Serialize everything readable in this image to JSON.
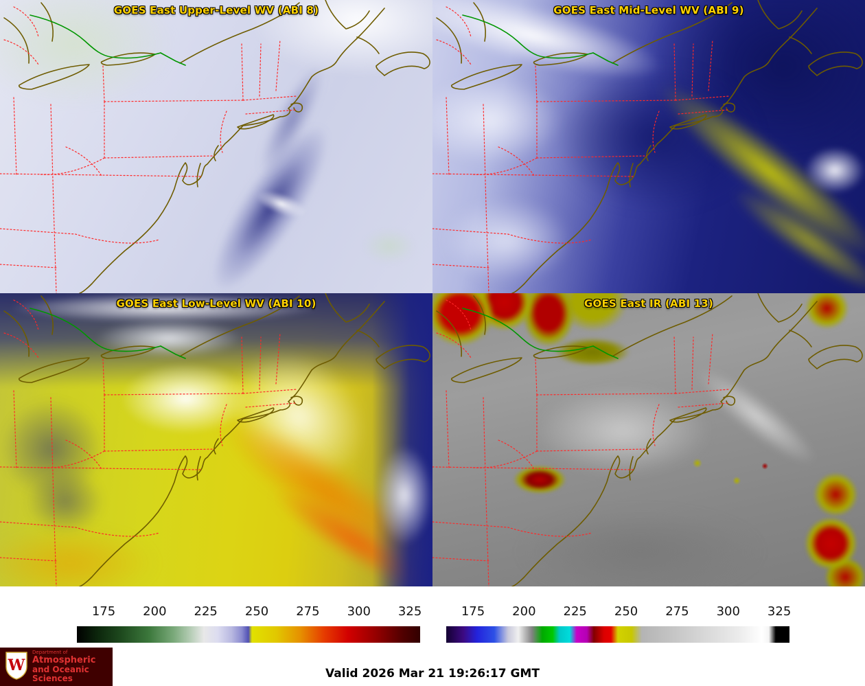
{
  "panels": [
    {
      "id": "upper-wv",
      "title": "GOES East Upper-Level WV (ABI 8)"
    },
    {
      "id": "mid-wv",
      "title": "GOES East Mid-Level WV (ABI 9)"
    },
    {
      "id": "low-wv",
      "title": "GOES East Low-Level WV (ABI 10)"
    },
    {
      "id": "ir",
      "title": "GOES East IR (ABI 13)"
    }
  ],
  "title_color": "#ffd200",
  "colorbars": [
    {
      "name": "wv-colorbar",
      "ticks": [
        "175",
        "200",
        "225",
        "250",
        "275",
        "300",
        "325"
      ],
      "gradient_stops": [
        "#000000 0%",
        "#0c260c 6%",
        "#1e4a1e 13%",
        "#3c783c 21%",
        "#78a878 28%",
        "#b4ccb4 33%",
        "#e8e8e8 37%",
        "#dcdcf0 41%",
        "#b9b9e1 45%",
        "#8c8cd0 48%",
        "#5050b4 50%",
        "#e1e100 51%",
        "#e1c800 58%",
        "#e69100 65%",
        "#e63c00 72%",
        "#d20000 79%",
        "#960000 87%",
        "#500000 95%",
        "#320000 100%"
      ]
    },
    {
      "name": "ir-colorbar",
      "ticks": [
        "175",
        "200",
        "225",
        "250",
        "275",
        "300",
        "325"
      ],
      "gradient_stops": [
        "#140032 0%",
        "#3c0a82 5%",
        "#2323dc 9%",
        "#2d50e6 14%",
        "#c8c8dc 18%",
        "#f0f0f0 21%",
        "#828282 25%",
        "#00aa00 28%",
        "#00c800 31%",
        "#00c8c8 33%",
        "#00dcdc 36%",
        "#c800c8 38%",
        "#b400b4 41%",
        "#820000 43%",
        "#dc0000 46%",
        "#e60000 48%",
        "#d2d200 50%",
        "#c8c800 54%",
        "#b4b4b4 57%",
        "#c3c3c3 65%",
        "#d7d7d7 75%",
        "#ebebeb 85%",
        "#ffffff 92%",
        "#f5f5f5 94%",
        "#000000 96%",
        "#000000 100%"
      ]
    }
  ],
  "basemap": {
    "state_border_color": "#ff2828",
    "coastline_color": "#6e5c00",
    "international_border_color": "#009600"
  },
  "footer": {
    "valid_time": "Valid 2026 Mar 21 19:26:17 GMT"
  },
  "logo": {
    "department_label": "Department of",
    "name_line1": "Atmospheric",
    "name_line2": "and Oceanic Sciences",
    "monogram": "W",
    "background_color": "#3f0000",
    "text_color": "#e03232",
    "crest_red": "#c5050c"
  }
}
